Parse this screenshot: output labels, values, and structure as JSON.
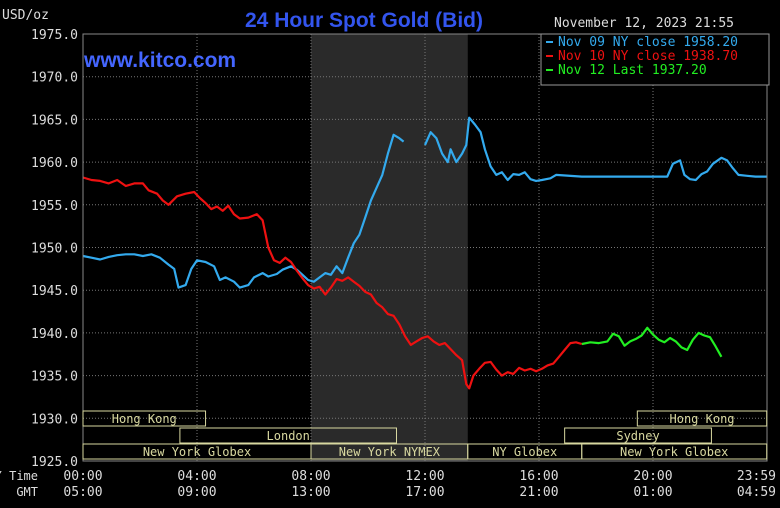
{
  "header": {
    "unit": "USD/oz",
    "title": "24 Hour Spot Gold (Bid)",
    "datetime": "November 12, 2023 21:55",
    "website": "www.kitco.com"
  },
  "colors": {
    "background": "#000000",
    "plot_bg": "#000000",
    "night_band": "#2a2a2a",
    "grid": "#777777",
    "title": "#3355ee",
    "website": "#4466ff",
    "axis_text": "#dddddd",
    "session_fill": "#d8d8a0",
    "session_text": "#000000"
  },
  "chart_data": {
    "type": "line",
    "ylabel": "USD/oz",
    "ylim": [
      1925,
      1975
    ],
    "yticks": [
      {
        "v": 1975,
        "label": "1975.0"
      },
      {
        "v": 1970,
        "label": "1970.0"
      },
      {
        "v": 1965,
        "label": "1965.0"
      },
      {
        "v": 1960,
        "label": "1960.0"
      },
      {
        "v": 1955,
        "label": "1955.0"
      },
      {
        "v": 1950,
        "label": "1950.0"
      },
      {
        "v": 1945,
        "label": "1945.0"
      },
      {
        "v": 1940,
        "label": "1940.0"
      },
      {
        "v": 1935,
        "label": "1935.0"
      },
      {
        "v": 1930,
        "label": "1930.0"
      },
      {
        "v": 1925,
        "label": "1925.0"
      }
    ],
    "xlim": [
      0,
      24
    ],
    "x_axis_rows": [
      {
        "label": "NY Time",
        "ticks": [
          "00:00",
          "04:00",
          "08:00",
          "12:00",
          "16:00",
          "20:00",
          "23:59"
        ]
      },
      {
        "label": "GMT",
        "ticks": [
          "05:00",
          "09:00",
          "13:00",
          "17:00",
          "21:00",
          "01:00",
          "04:59"
        ]
      }
    ],
    "night_band": [
      8.0,
      13.5
    ],
    "legend_position": "top-right",
    "series": [
      {
        "name": "Nov 09 NY close 1958.20",
        "color": "#33aaee",
        "points": [
          [
            0,
            1949.0
          ],
          [
            0.3,
            1948.8
          ],
          [
            0.6,
            1948.6
          ],
          [
            0.9,
            1948.9
          ],
          [
            1.2,
            1949.1
          ],
          [
            1.5,
            1949.2
          ],
          [
            1.8,
            1949.2
          ],
          [
            2.1,
            1949.0
          ],
          [
            2.4,
            1949.2
          ],
          [
            2.7,
            1948.8
          ],
          [
            3.0,
            1948.0
          ],
          [
            3.2,
            1947.5
          ],
          [
            3.35,
            1945.3
          ],
          [
            3.6,
            1945.6
          ],
          [
            3.8,
            1947.5
          ],
          [
            4.0,
            1948.5
          ],
          [
            4.3,
            1948.3
          ],
          [
            4.6,
            1947.8
          ],
          [
            4.8,
            1946.2
          ],
          [
            5.0,
            1946.5
          ],
          [
            5.3,
            1946.0
          ],
          [
            5.5,
            1945.3
          ],
          [
            5.8,
            1945.6
          ],
          [
            6.0,
            1946.5
          ],
          [
            6.3,
            1947.0
          ],
          [
            6.5,
            1946.6
          ],
          [
            6.8,
            1946.9
          ],
          [
            7.0,
            1947.4
          ],
          [
            7.3,
            1947.8
          ],
          [
            7.5,
            1947.4
          ],
          [
            7.7,
            1946.8
          ],
          [
            7.9,
            1946.2
          ],
          [
            8.1,
            1946.0
          ],
          [
            8.3,
            1946.5
          ],
          [
            8.5,
            1947.0
          ],
          [
            8.7,
            1946.8
          ],
          [
            8.9,
            1947.8
          ],
          [
            9.1,
            1947.0
          ],
          [
            9.3,
            1948.8
          ],
          [
            9.5,
            1950.5
          ],
          [
            9.7,
            1951.5
          ],
          [
            9.9,
            1953.5
          ],
          [
            10.1,
            1955.5
          ],
          [
            10.3,
            1957.0
          ],
          [
            10.5,
            1958.5
          ],
          [
            10.7,
            1961.0
          ],
          [
            10.9,
            1963.2
          ],
          [
            11.1,
            1962.8
          ],
          [
            11.25,
            1962.4
          ],
          [
            11.35,
            null
          ],
          [
            12.0,
            1962.0
          ],
          [
            12.2,
            1963.5
          ],
          [
            12.4,
            1962.8
          ],
          [
            12.6,
            1961.0
          ],
          [
            12.8,
            1960.0
          ],
          [
            12.9,
            1961.5
          ],
          [
            13.1,
            1960.0
          ],
          [
            13.3,
            1961.0
          ],
          [
            13.45,
            1962.0
          ],
          [
            13.55,
            1965.2
          ],
          [
            13.75,
            1964.4
          ],
          [
            13.95,
            1963.5
          ],
          [
            14.1,
            1961.5
          ],
          [
            14.3,
            1959.5
          ],
          [
            14.5,
            1958.5
          ],
          [
            14.7,
            1958.8
          ],
          [
            14.9,
            1957.9
          ],
          [
            15.1,
            1958.6
          ],
          [
            15.3,
            1958.5
          ],
          [
            15.5,
            1958.8
          ],
          [
            15.7,
            1958.0
          ],
          [
            15.9,
            1957.8
          ],
          [
            16.1,
            1957.9
          ],
          [
            16.4,
            1958.1
          ],
          [
            16.6,
            1958.5
          ],
          [
            17.5,
            1958.3
          ],
          [
            19.0,
            1958.3
          ],
          [
            20.2,
            1958.3
          ],
          [
            20.5,
            1958.3
          ],
          [
            20.7,
            1959.8
          ],
          [
            20.95,
            1960.2
          ],
          [
            21.1,
            1958.5
          ],
          [
            21.3,
            1958.0
          ],
          [
            21.5,
            1957.9
          ],
          [
            21.7,
            1958.6
          ],
          [
            21.9,
            1958.9
          ],
          [
            22.1,
            1959.8
          ],
          [
            22.4,
            1960.5
          ],
          [
            22.6,
            1960.2
          ],
          [
            22.8,
            1959.3
          ],
          [
            23.0,
            1958.5
          ],
          [
            23.3,
            1958.4
          ],
          [
            23.6,
            1958.3
          ],
          [
            23.99,
            1958.3
          ]
        ]
      },
      {
        "name": "Nov 10 NY close 1938.70",
        "color": "#ee1111",
        "points": [
          [
            0,
            1958.2
          ],
          [
            0.3,
            1957.9
          ],
          [
            0.6,
            1957.8
          ],
          [
            0.9,
            1957.5
          ],
          [
            1.2,
            1957.9
          ],
          [
            1.5,
            1957.2
          ],
          [
            1.8,
            1957.5
          ],
          [
            2.1,
            1957.5
          ],
          [
            2.3,
            1956.7
          ],
          [
            2.6,
            1956.3
          ],
          [
            2.8,
            1955.5
          ],
          [
            3.0,
            1955.0
          ],
          [
            3.3,
            1956.0
          ],
          [
            3.6,
            1956.3
          ],
          [
            3.9,
            1956.5
          ],
          [
            4.1,
            1955.8
          ],
          [
            4.3,
            1955.2
          ],
          [
            4.5,
            1954.5
          ],
          [
            4.7,
            1954.8
          ],
          [
            4.9,
            1954.3
          ],
          [
            5.1,
            1954.9
          ],
          [
            5.3,
            1953.9
          ],
          [
            5.5,
            1953.4
          ],
          [
            5.8,
            1953.5
          ],
          [
            6.1,
            1953.9
          ],
          [
            6.3,
            1953.2
          ],
          [
            6.5,
            1950.0
          ],
          [
            6.7,
            1948.5
          ],
          [
            6.9,
            1948.2
          ],
          [
            7.1,
            1948.8
          ],
          [
            7.3,
            1948.3
          ],
          [
            7.5,
            1947.3
          ],
          [
            7.7,
            1946.4
          ],
          [
            7.9,
            1945.6
          ],
          [
            8.1,
            1945.2
          ],
          [
            8.3,
            1945.4
          ],
          [
            8.5,
            1944.5
          ],
          [
            8.7,
            1945.3
          ],
          [
            8.9,
            1946.3
          ],
          [
            9.1,
            1946.1
          ],
          [
            9.3,
            1946.5
          ],
          [
            9.5,
            1946.0
          ],
          [
            9.7,
            1945.5
          ],
          [
            9.9,
            1944.8
          ],
          [
            10.1,
            1944.5
          ],
          [
            10.3,
            1943.5
          ],
          [
            10.5,
            1943.0
          ],
          [
            10.7,
            1942.2
          ],
          [
            10.9,
            1942.0
          ],
          [
            11.1,
            1941.0
          ],
          [
            11.3,
            1939.6
          ],
          [
            11.5,
            1938.6
          ],
          [
            11.7,
            1939.0
          ],
          [
            11.9,
            1939.4
          ],
          [
            12.1,
            1939.6
          ],
          [
            12.3,
            1939.0
          ],
          [
            12.5,
            1938.6
          ],
          [
            12.7,
            1938.8
          ],
          [
            12.9,
            1938.1
          ],
          [
            13.1,
            1937.4
          ],
          [
            13.3,
            1936.8
          ],
          [
            13.45,
            1934.0
          ],
          [
            13.55,
            1933.5
          ],
          [
            13.7,
            1935.0
          ],
          [
            13.9,
            1935.8
          ],
          [
            14.1,
            1936.5
          ],
          [
            14.3,
            1936.6
          ],
          [
            14.5,
            1935.7
          ],
          [
            14.7,
            1935.0
          ],
          [
            14.9,
            1935.4
          ],
          [
            15.1,
            1935.2
          ],
          [
            15.3,
            1935.9
          ],
          [
            15.5,
            1935.6
          ],
          [
            15.7,
            1935.8
          ],
          [
            15.9,
            1935.5
          ],
          [
            16.1,
            1935.8
          ],
          [
            16.3,
            1936.2
          ],
          [
            16.5,
            1936.4
          ],
          [
            16.7,
            1937.2
          ],
          [
            16.9,
            1938.0
          ],
          [
            17.1,
            1938.8
          ],
          [
            17.3,
            1938.9
          ],
          [
            17.5,
            1938.7
          ]
        ]
      },
      {
        "name": "Nov 12 Last 1937.20",
        "color": "#22ee22",
        "points": [
          [
            17.5,
            1938.7
          ],
          [
            17.8,
            1938.9
          ],
          [
            18.1,
            1938.8
          ],
          [
            18.4,
            1939.0
          ],
          [
            18.6,
            1939.9
          ],
          [
            18.8,
            1939.6
          ],
          [
            19.0,
            1938.5
          ],
          [
            19.2,
            1939.0
          ],
          [
            19.4,
            1939.3
          ],
          [
            19.6,
            1939.7
          ],
          [
            19.8,
            1940.6
          ],
          [
            20.0,
            1939.8
          ],
          [
            20.2,
            1939.2
          ],
          [
            20.4,
            1938.9
          ],
          [
            20.6,
            1939.4
          ],
          [
            20.8,
            1939.0
          ],
          [
            21.0,
            1938.3
          ],
          [
            21.2,
            1938.0
          ],
          [
            21.4,
            1939.2
          ],
          [
            21.6,
            1940.0
          ],
          [
            21.8,
            1939.7
          ],
          [
            22.0,
            1939.5
          ],
          [
            22.2,
            1938.4
          ],
          [
            22.4,
            1937.2
          ]
        ]
      }
    ],
    "sessions": [
      {
        "label": "Hong Kong",
        "row": 0,
        "start": 0.0,
        "end": 4.3
      },
      {
        "label": "Hong Kong",
        "row": 0,
        "start": 19.45,
        "end": 23.99
      },
      {
        "label": "London",
        "row": 1,
        "start": 3.4,
        "end": 11.0
      },
      {
        "label": "Sydney",
        "row": 1,
        "start": 16.9,
        "end": 22.05
      },
      {
        "label": "New York Globex",
        "row": 2,
        "start": 0.0,
        "end": 8.0
      },
      {
        "label": "New York NYMEX",
        "row": 2,
        "start": 8.0,
        "end": 13.5
      },
      {
        "label": "NY Globex",
        "row": 2,
        "start": 13.5,
        "end": 17.5
      },
      {
        "label": "New York Globex",
        "row": 2,
        "start": 17.5,
        "end": 23.99
      }
    ]
  }
}
